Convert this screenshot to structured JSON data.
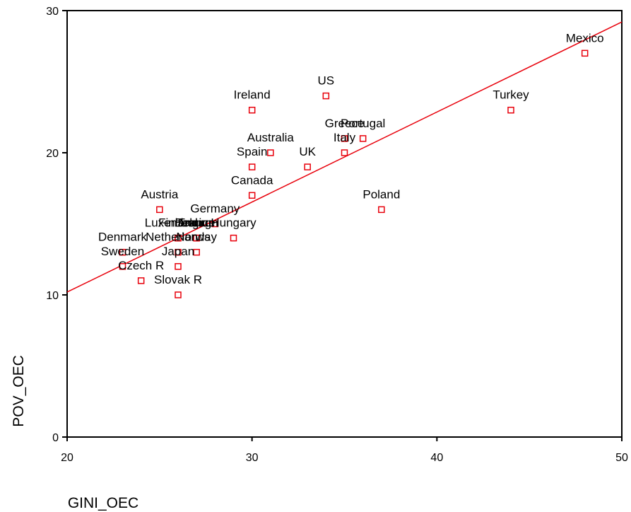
{
  "chart_data": {
    "type": "scatter",
    "xlabel": "GINI_OEC",
    "ylabel": "POV_OEC",
    "xlim": [
      20,
      50
    ],
    "ylim": [
      0,
      30
    ],
    "x_ticks": [
      20,
      30,
      40,
      50
    ],
    "y_ticks": [
      0,
      10,
      20,
      30
    ],
    "grid": false,
    "marker_color": "#e8000b",
    "fit_line_color": "#e8000b",
    "fit_line": {
      "x": [
        20,
        50
      ],
      "y": [
        10.2,
        29.2
      ]
    },
    "points": [
      {
        "label": "Mexico",
        "x": 48,
        "y": 27
      },
      {
        "label": "Turkey",
        "x": 44,
        "y": 23
      },
      {
        "label": "US",
        "x": 34,
        "y": 24
      },
      {
        "label": "Ireland",
        "x": 30,
        "y": 23
      },
      {
        "label": "Greece",
        "x": 35,
        "y": 21
      },
      {
        "label": "Portugal",
        "x": 36,
        "y": 21
      },
      {
        "label": "Italy",
        "x": 35,
        "y": 20
      },
      {
        "label": "Australia",
        "x": 31,
        "y": 20
      },
      {
        "label": "Spain",
        "x": 30,
        "y": 19
      },
      {
        "label": "UK",
        "x": 33,
        "y": 19
      },
      {
        "label": "Canada",
        "x": 30,
        "y": 17
      },
      {
        "label": "Poland",
        "x": 37,
        "y": 16
      },
      {
        "label": "Austria",
        "x": 25,
        "y": 16
      },
      {
        "label": "Germany",
        "x": 28,
        "y": 15
      },
      {
        "label": "Finland",
        "x": 26,
        "y": 14
      },
      {
        "label": "Hungary",
        "x": 29,
        "y": 14
      },
      {
        "label": "Luxembourg",
        "x": 26,
        "y": 14
      },
      {
        "label": "France",
        "x": 27,
        "y": 14
      },
      {
        "label": "Belgium",
        "x": 27,
        "y": 14
      },
      {
        "label": "Denmark",
        "x": 23,
        "y": 13
      },
      {
        "label": "Netherlands",
        "x": 26,
        "y": 13
      },
      {
        "label": "Norway",
        "x": 27,
        "y": 13
      },
      {
        "label": "Sweden",
        "x": 23,
        "y": 12
      },
      {
        "label": "Japan",
        "x": 26,
        "y": 12
      },
      {
        "label": "Czech R",
        "x": 24,
        "y": 11
      },
      {
        "label": "Slovak R",
        "x": 26,
        "y": 10
      }
    ]
  }
}
